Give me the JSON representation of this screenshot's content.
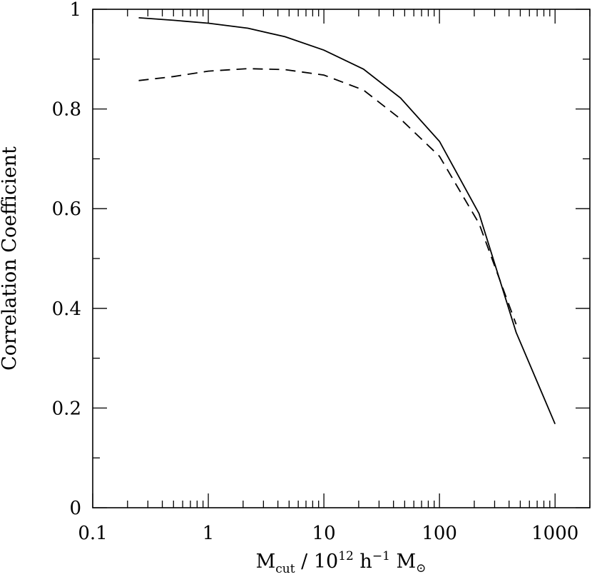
{
  "chart_data": {
    "type": "line",
    "title": "",
    "xlabel": {
      "base": "M",
      "subscript": "cut",
      "middle": " / 10",
      "superscript": "12",
      "middle2": " h",
      "superscript2": "−1",
      "end": " M",
      "endsymbol": "⊙"
    },
    "ylabel": "Correlation Coefficient",
    "xscale": "log",
    "xlim": [
      0.1,
      2000
    ],
    "ylim": [
      0,
      1
    ],
    "xticks": [
      {
        "value": 0.1,
        "label": "0.1"
      },
      {
        "value": 1,
        "label": "1"
      },
      {
        "value": 10,
        "label": "10"
      },
      {
        "value": 100,
        "label": "100"
      },
      {
        "value": 1000,
        "label": "1000"
      }
    ],
    "yticks": [
      {
        "value": 0,
        "label": "0"
      },
      {
        "value": 0.2,
        "label": "0.2"
      },
      {
        "value": 0.4,
        "label": "0.4"
      },
      {
        "value": 0.6,
        "label": "0.6"
      },
      {
        "value": 0.8,
        "label": "0.8"
      },
      {
        "value": 1,
        "label": "1"
      }
    ],
    "grid": false,
    "series": [
      {
        "style": "solid",
        "color": "#000000",
        "x": [
          0.25,
          0.5,
          1,
          2.2,
          4.6,
          10,
          22,
          46,
          100,
          220,
          460,
          1000
        ],
        "y": [
          0.983,
          0.978,
          0.972,
          0.962,
          0.945,
          0.918,
          0.88,
          0.822,
          0.735,
          0.59,
          0.352,
          0.168
        ]
      },
      {
        "style": "dashed",
        "color": "#000000",
        "x": [
          0.25,
          0.5,
          1,
          2.2,
          4.6,
          10,
          22,
          46,
          100,
          220,
          460
        ],
        "y": [
          0.857,
          0.865,
          0.876,
          0.881,
          0.879,
          0.868,
          0.838,
          0.78,
          0.705,
          0.57,
          0.368
        ]
      }
    ]
  }
}
